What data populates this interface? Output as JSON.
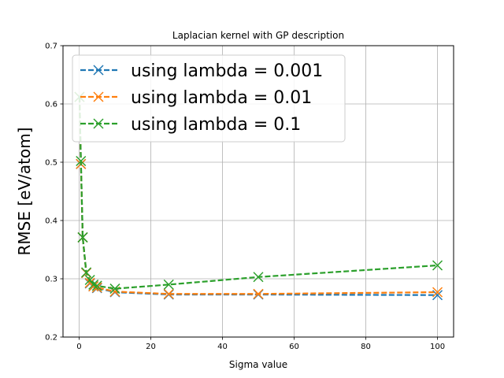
{
  "chart_data": {
    "type": "line",
    "title": "Laplacian kernel with GP description",
    "xlabel": "Sigma value",
    "ylabel": "RMSE [eV/atom]",
    "xlim": [
      -4.5,
      104.5
    ],
    "ylim": [
      0.2,
      0.7
    ],
    "xticks": [
      0,
      20,
      40,
      60,
      80,
      100
    ],
    "yticks": [
      0.2,
      0.3,
      0.4,
      0.5,
      0.6,
      0.7
    ],
    "grid": true,
    "legend_position": "top-left",
    "x": [
      0.1,
      0.5,
      1,
      2,
      3,
      4,
      5,
      10,
      25,
      50,
      100
    ],
    "series": [
      {
        "name": "using lambda = 0.001",
        "color": "#1f77b4",
        "values": [
          0.612,
          0.497,
          0.371,
          0.31,
          0.292,
          0.287,
          0.284,
          0.277,
          0.273,
          0.273,
          0.272
        ]
      },
      {
        "name": "using lambda = 0.01",
        "color": "#ff7f0e",
        "values": [
          0.612,
          0.497,
          0.371,
          0.31,
          0.293,
          0.287,
          0.285,
          0.278,
          0.274,
          0.274,
          0.277
        ]
      },
      {
        "name": "using lambda = 0.1",
        "color": "#2ca02c",
        "values": [
          0.612,
          0.502,
          0.371,
          0.311,
          0.298,
          0.29,
          0.288,
          0.283,
          0.29,
          0.303,
          0.323
        ]
      }
    ]
  }
}
